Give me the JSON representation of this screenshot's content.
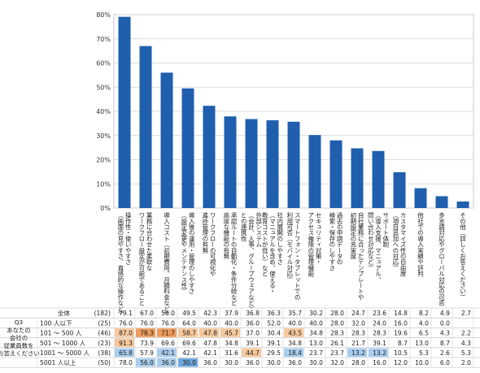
{
  "chart_data": {
    "type": "bar",
    "ylim": [
      0,
      80
    ],
    "yticks": [
      "0%",
      "10%",
      "20%",
      "30%",
      "40%",
      "50%",
      "60%",
      "70%",
      "80%"
    ],
    "bar_color": "#1f5fae",
    "categories": [
      [
        "操作性・使いやすさ",
        "（画面の見やすさ、直感的な操作など）"
      ],
      [
        "業務に合わせた柔軟な",
        "ワークフロー設定が可能であること"
      ],
      [
        "導入コスト（初期費用、月額料金など）"
      ],
      [
        "導入後の運用・管理のしやすさ",
        "（設定変更やメンテナンス性）"
      ],
      [
        "ワークフローの可視化や",
        "進捗管理の有無"
      ],
      [
        "承認ルートの自動化・条件分岐など",
        "高度な機能の有無"
      ],
      [
        "外部システム",
        "（会計、人事、グループウェアなど）",
        "との連携性"
      ],
      [
        "社内展開のしやすさ",
        "（マニュアルを含め、使える・",
        "教育コストが低い）など"
      ],
      [
        "スマートフォン・タブレットでの",
        "利用可否（モバイル対応）"
      ],
      [
        "セキュリティ対策・",
        "アクセス権限の管理機能"
      ],
      [
        "過去の申請データの",
        "検索・保存のしやすさ"
      ],
      [
        "自社業務に合ったテンプレートや",
        "初期設定の充実度"
      ],
      [
        "サポート体制",
        "（導入支援、マニュアル、",
        "問い合わせ対応など）"
      ],
      [
        "カスタマイズ性の自由度",
        "（項目追加への対応）"
      ],
      [
        "他社での導入実績や評判"
      ],
      [
        "多言語対応やグローバル対応の可否"
      ],
      [
        "その他（詳しくお答えください）"
      ]
    ],
    "values": [
      79.1,
      67.0,
      56.0,
      49.5,
      42.3,
      37.9,
      36.8,
      36.3,
      35.7,
      30.2,
      28.0,
      24.7,
      23.6,
      14.8,
      8.2,
      4.9,
      2.7
    ]
  },
  "table": {
    "group_label": [
      "Q3",
      "あなたの",
      "会社の",
      "従業員数を",
      "お答えください"
    ],
    "rows": [
      {
        "label": "全体",
        "n": "(182)",
        "values": [
          "79.1",
          "67.0",
          "56.0",
          "49.5",
          "42.3",
          "37.9",
          "36.8",
          "36.3",
          "35.7",
          "30.2",
          "28.0",
          "24.7",
          "23.6",
          "14.8",
          "8.2",
          "4.9",
          "2.7"
        ],
        "hl": [
          "",
          "",
          "",
          "",
          "",
          "",
          "",
          "",
          "",
          "",
          "",
          "",
          "",
          "",
          "",
          "",
          ""
        ]
      },
      {
        "label": "100 人以下",
        "n": "(25)",
        "values": [
          "76.0",
          "76.0",
          "76.0",
          "64.0",
          "40.0",
          "40.0",
          "36.0",
          "52.0",
          "40.0",
          "40.0",
          "28.0",
          "32.0",
          "24.0",
          "16.0",
          "4.0",
          "0.0",
          ""
        ],
        "hl": [
          "",
          "",
          "",
          "",
          "",
          "",
          "",
          "",
          "",
          "",
          "",
          "",
          "",
          "",
          "",
          "",
          ""
        ]
      },
      {
        "label": "101 ～ 500 人",
        "n": "(46)",
        "values": [
          "87.0",
          "78.3",
          "71.7",
          "58.7",
          "47.8",
          "45.7",
          "37.0",
          "30.4",
          "43.5",
          "34.8",
          "28.3",
          "28.3",
          "28.3",
          "19.6",
          "6.5",
          "4.3",
          "2.2"
        ],
        "hl": [
          "o1",
          "o2",
          "o2",
          "o1",
          "o1",
          "o1",
          "",
          "",
          "o1",
          "",
          "",
          "",
          "",
          "",
          "",
          "",
          ""
        ]
      },
      {
        "label": "501 ～ 1000 人",
        "n": "(23)",
        "values": [
          "91.3",
          "73.9",
          "69.6",
          "69.6",
          "47.8",
          "34.8",
          "39.1",
          "39.1",
          "34.8",
          "13.0",
          "26.1",
          "21.7",
          "39.1",
          "8.7",
          "13.0",
          "8.7",
          "4.3"
        ],
        "hl": [
          "o1",
          "",
          "",
          "",
          "",
          "",
          "",
          "",
          "",
          "",
          "",
          "",
          "",
          "",
          "",
          "",
          ""
        ]
      },
      {
        "label": "1001 ～ 5000 人",
        "n": "(38)",
        "values": [
          "65.8",
          "57.9",
          "42.1",
          "42.1",
          "42.1",
          "31.6",
          "44.7",
          "29.5",
          "18.4",
          "23.7",
          "23.7",
          "13.2",
          "13.2",
          "10.5",
          "5.3",
          "2.6",
          "5.3"
        ],
        "hl": [
          "b1",
          "",
          "b1",
          "",
          "",
          "",
          "o1",
          "",
          "b1",
          "",
          "",
          "b1",
          "b1",
          "",
          "",
          "",
          ""
        ]
      },
      {
        "label": "5001 人以上",
        "n": "(50)",
        "values": [
          "78.0",
          "56.0",
          "36.0",
          "30.0",
          "36.0",
          "30.0",
          "36.0",
          "30.0",
          "36.0",
          "30.0",
          "32.0",
          "28.0",
          "16.0",
          "12.0",
          "10.0",
          "6.0",
          "2.0"
        ],
        "hl": [
          "",
          "b1",
          "b1",
          "b2",
          "",
          "",
          "",
          "",
          "",
          "",
          "",
          "",
          "",
          "",
          "",
          "",
          ""
        ]
      }
    ]
  },
  "colors": {
    "o1": "#f7c89c",
    "o2": "#ef9a5c",
    "b1": "#a9cdee",
    "b2": "#6fa8dc"
  }
}
